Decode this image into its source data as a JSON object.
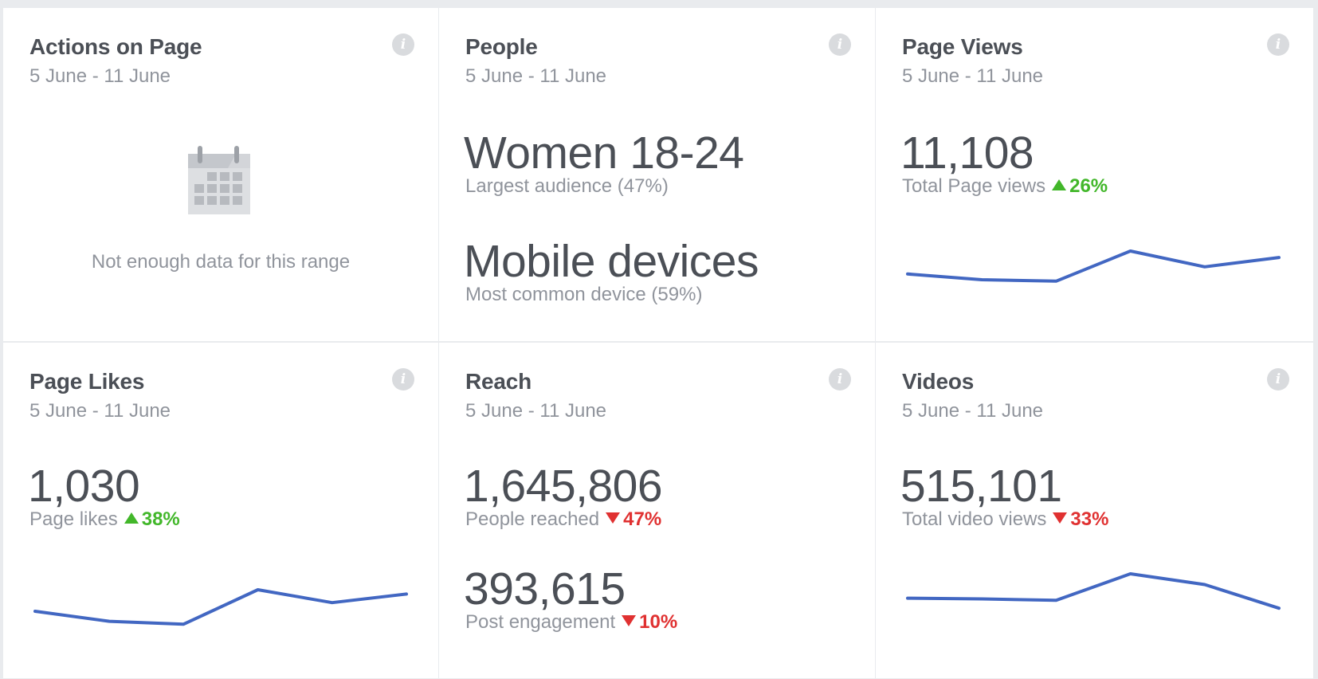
{
  "date_range": "5 June - 11 June",
  "colors": {
    "positive": "#42b72a",
    "negative": "#e03131",
    "line": "#4267c2"
  },
  "cards": {
    "actions": {
      "title": "Actions on Page",
      "empty_message": "Not enough data for this range",
      "icon": "calendar-icon"
    },
    "people": {
      "title": "People",
      "audience_value": "Women 18-24",
      "audience_label": "Largest audience (47%)",
      "device_value": "Mobile devices",
      "device_label": "Most common device (59%)"
    },
    "page_views": {
      "title": "Page Views",
      "value": "11,108",
      "label": "Total Page views",
      "change": "26%",
      "direction": "up"
    },
    "page_likes": {
      "title": "Page Likes",
      "value": "1,030",
      "label": "Page likes",
      "change": "38%",
      "direction": "up"
    },
    "reach": {
      "title": "Reach",
      "value": "1,645,806",
      "label": "People reached",
      "change": "47%",
      "direction": "down",
      "engagement_value": "393,615",
      "engagement_label": "Post engagement",
      "engagement_change": "10%",
      "engagement_direction": "down"
    },
    "videos": {
      "title": "Videos",
      "value": "515,101",
      "label": "Total video views",
      "change": "33%",
      "direction": "down"
    }
  },
  "chart_data": [
    {
      "type": "line",
      "name": "page_views_trend",
      "values": [
        0.32,
        0.4,
        0.42,
        0.0,
        0.22,
        0.09
      ]
    },
    {
      "type": "line",
      "name": "page_likes_trend",
      "values": [
        0.3,
        0.44,
        0.48,
        0.0,
        0.18,
        0.06
      ]
    },
    {
      "type": "line",
      "name": "videos_trend",
      "values": [
        0.34,
        0.35,
        0.37,
        0.0,
        0.15,
        0.48
      ]
    }
  ]
}
